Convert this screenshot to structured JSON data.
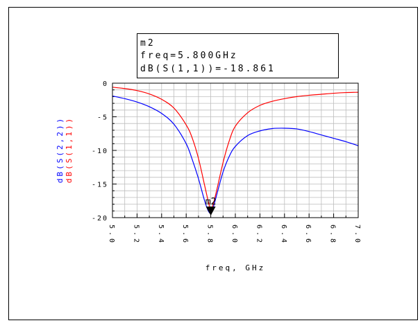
{
  "chart_data": {
    "type": "line",
    "title": "",
    "xlabel": "freq, GHz",
    "ylabel_series": [
      "dB(S(2,2))",
      "dB(S(1,1))"
    ],
    "xlim": [
      5.0,
      7.0
    ],
    "ylim": [
      -20,
      0
    ],
    "x_ticks": [
      "5.0",
      "5.2",
      "5.4",
      "5.6",
      "5.8",
      "6.0",
      "6.2",
      "6.4",
      "6.6",
      "6.8",
      "7.0"
    ],
    "y_ticks": [
      "0",
      "-5",
      "-10",
      "-15",
      "-20"
    ],
    "grid": true,
    "series": [
      {
        "name": "dB(S(1,1))",
        "color": "#ff0000",
        "x": [
          5.0,
          5.1,
          5.2,
          5.3,
          5.4,
          5.5,
          5.6,
          5.65,
          5.7,
          5.75,
          5.78,
          5.8,
          5.82,
          5.85,
          5.9,
          5.95,
          6.0,
          6.1,
          6.2,
          6.3,
          6.4,
          6.5,
          6.6,
          6.7,
          6.8,
          6.9,
          7.0
        ],
        "y": [
          -0.6,
          -0.8,
          -1.1,
          -1.6,
          -2.4,
          -3.7,
          -6.2,
          -8.2,
          -11.2,
          -15.2,
          -17.6,
          -18.861,
          -18.0,
          -15.8,
          -11.8,
          -8.6,
          -6.4,
          -4.4,
          -3.3,
          -2.7,
          -2.3,
          -2.0,
          -1.8,
          -1.65,
          -1.5,
          -1.4,
          -1.35
        ]
      },
      {
        "name": "dB(S(2,2))",
        "color": "#0000ff",
        "x": [
          5.0,
          5.1,
          5.2,
          5.3,
          5.4,
          5.5,
          5.6,
          5.65,
          5.7,
          5.75,
          5.78,
          5.8,
          5.82,
          5.85,
          5.9,
          5.95,
          6.0,
          6.1,
          6.2,
          6.3,
          6.4,
          6.5,
          6.6,
          6.7,
          6.8,
          6.9,
          7.0
        ],
        "y": [
          -1.9,
          -2.3,
          -2.8,
          -3.5,
          -4.5,
          -6.1,
          -9.0,
          -11.4,
          -14.2,
          -17.5,
          -19.0,
          -19.3,
          -18.5,
          -16.5,
          -13.2,
          -10.9,
          -9.4,
          -7.8,
          -7.1,
          -6.75,
          -6.7,
          -6.8,
          -7.2,
          -7.7,
          -8.2,
          -8.7,
          -9.3
        ]
      }
    ],
    "marker": {
      "name": "m2",
      "x": 5.8,
      "y": -18.861,
      "lines": [
        "m2",
        "freq=5.800GHz",
        "dB(S(1,1))=-18.861"
      ]
    }
  }
}
